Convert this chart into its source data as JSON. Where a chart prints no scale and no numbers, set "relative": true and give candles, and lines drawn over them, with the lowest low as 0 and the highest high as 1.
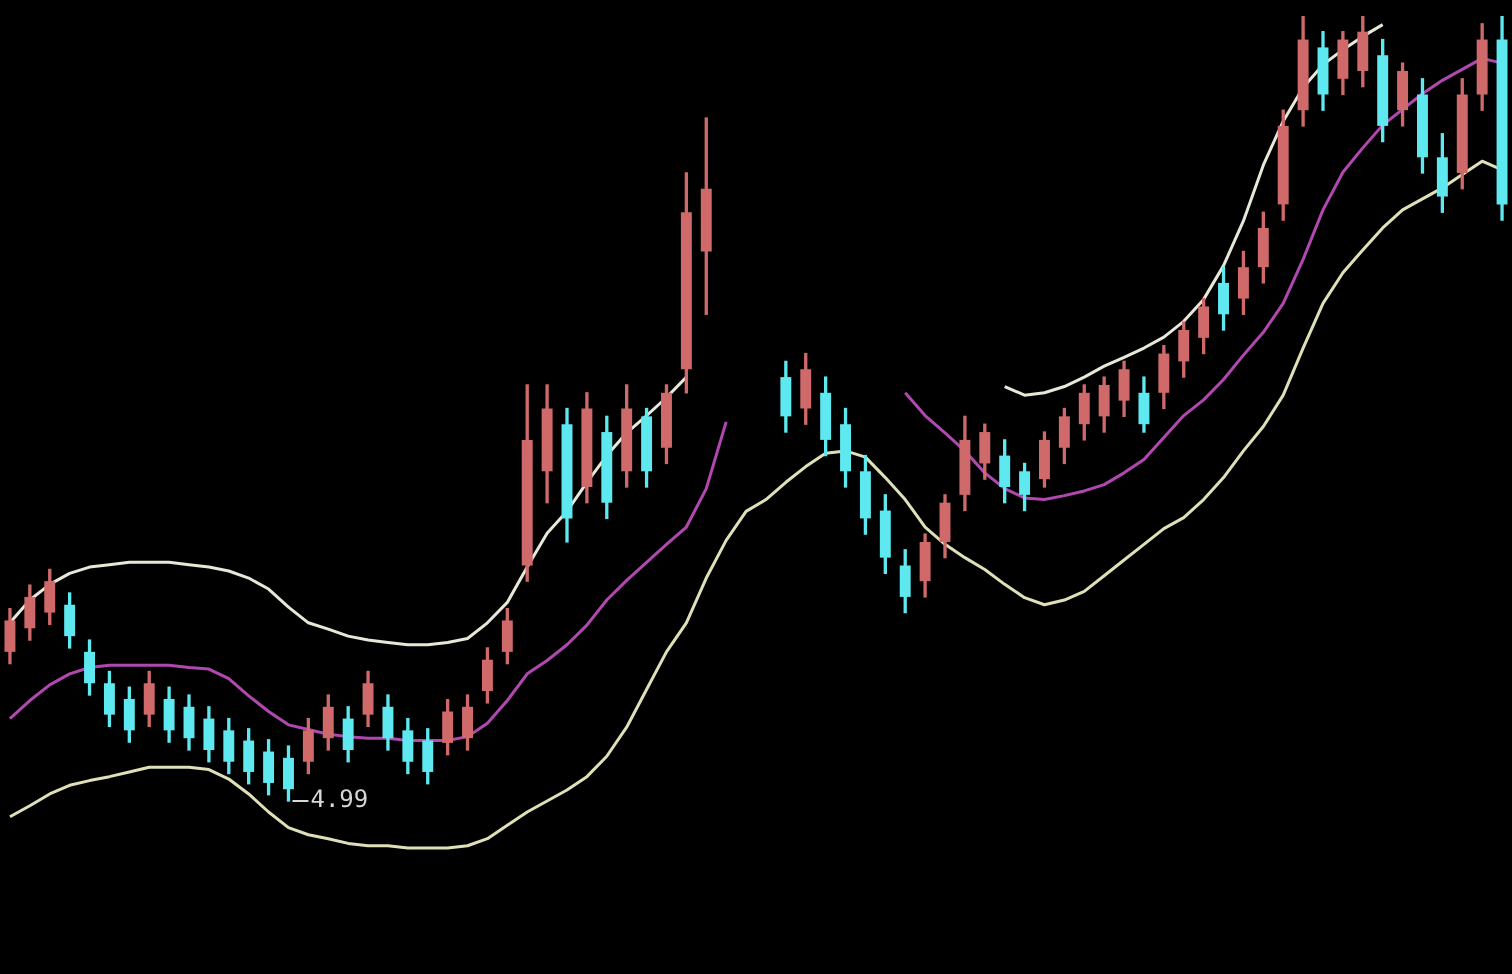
{
  "chart_data": {
    "type": "candlestick",
    "relative": true,
    "categories": [
      null,
      null,
      null,
      null,
      null,
      null,
      null,
      null,
      null,
      null,
      null,
      null,
      null,
      null,
      null,
      null,
      null,
      null,
      null,
      null,
      null,
      null,
      null,
      null,
      null,
      null,
      null,
      null,
      null,
      null,
      null,
      null,
      null,
      null,
      null,
      null,
      null,
      null,
      null,
      null,
      null,
      null,
      null,
      null,
      null,
      null,
      null,
      null,
      null,
      null,
      null,
      null,
      null,
      null,
      null,
      null,
      null,
      null,
      null,
      null,
      null,
      null,
      null,
      null,
      null,
      null,
      null,
      null,
      null,
      null,
      null,
      null,
      null,
      null,
      null,
      null
    ],
    "ohlc": [
      [
        0.19,
        0.245,
        0.175,
        0.23
      ],
      [
        0.22,
        0.275,
        0.205,
        0.26
      ],
      [
        0.24,
        0.295,
        0.225,
        0.28
      ],
      [
        0.25,
        0.265,
        0.195,
        0.21
      ],
      [
        0.19,
        0.205,
        0.135,
        0.15
      ],
      [
        0.15,
        0.165,
        0.095,
        0.11
      ],
      [
        0.13,
        0.145,
        0.075,
        0.09
      ],
      [
        0.11,
        0.165,
        0.095,
        0.15
      ],
      [
        0.13,
        0.145,
        0.075,
        0.09
      ],
      [
        0.12,
        0.135,
        0.065,
        0.08
      ],
      [
        0.105,
        0.12,
        0.05,
        0.065
      ],
      [
        0.09,
        0.105,
        0.035,
        0.05
      ],
      [
        0.077,
        0.092,
        0.022,
        0.037
      ],
      [
        0.063,
        0.078,
        0.008,
        0.023
      ],
      [
        0.055,
        0.07,
        0,
        0.015
      ],
      [
        0.05,
        0.105,
        0.035,
        0.09
      ],
      [
        0.08,
        0.135,
        0.065,
        0.12
      ],
      [
        0.105,
        0.12,
        0.05,
        0.065
      ],
      [
        0.11,
        0.165,
        0.095,
        0.15
      ],
      [
        0.12,
        0.135,
        0.065,
        0.08
      ],
      [
        0.09,
        0.105,
        0.035,
        0.05
      ],
      [
        0.077,
        0.092,
        0.022,
        0.037
      ],
      [
        0.074,
        0.129,
        0.059,
        0.114
      ],
      [
        0.08,
        0.135,
        0.065,
        0.12
      ],
      [
        0.14,
        0.195,
        0.125,
        0.18
      ],
      [
        0.19,
        0.245,
        0.175,
        0.23
      ],
      [
        0.3,
        0.53,
        0.28,
        0.46
      ],
      [
        0.42,
        0.53,
        0.38,
        0.5
      ],
      [
        0.48,
        0.5,
        0.33,
        0.36
      ],
      [
        0.4,
        0.52,
        0.38,
        0.5
      ],
      [
        0.47,
        0.49,
        0.36,
        0.38
      ],
      [
        0.42,
        0.53,
        0.4,
        0.5
      ],
      [
        0.49,
        0.5,
        0.4,
        0.42
      ],
      [
        0.45,
        0.53,
        0.43,
        0.52
      ],
      [
        0.55,
        0.8,
        0.52,
        0.75
      ],
      [
        0.7,
        0.87,
        0.62,
        0.78
      ],
      null,
      null,
      null,
      [
        0.54,
        0.56,
        0.47,
        0.49
      ],
      [
        0.5,
        0.57,
        0.48,
        0.55
      ],
      [
        0.52,
        0.54,
        0.44,
        0.46
      ],
      [
        0.48,
        0.5,
        0.4,
        0.42
      ],
      [
        0.42,
        0.44,
        0.34,
        0.36
      ],
      [
        0.37,
        0.39,
        0.29,
        0.31
      ],
      [
        0.3,
        0.32,
        0.24,
        0.26
      ],
      [
        0.28,
        0.34,
        0.26,
        0.33
      ],
      [
        0.33,
        0.39,
        0.31,
        0.38
      ],
      [
        0.39,
        0.49,
        0.37,
        0.46
      ],
      [
        0.43,
        0.48,
        0.41,
        0.47
      ],
      [
        0.44,
        0.46,
        0.38,
        0.4
      ],
      [
        0.42,
        0.43,
        0.37,
        0.39
      ],
      [
        0.41,
        0.47,
        0.4,
        0.46
      ],
      [
        0.45,
        0.5,
        0.43,
        0.49
      ],
      [
        0.48,
        0.53,
        0.46,
        0.52
      ],
      [
        0.49,
        0.54,
        0.47,
        0.53
      ],
      [
        0.51,
        0.56,
        0.49,
        0.55
      ],
      [
        0.52,
        0.54,
        0.47,
        0.48
      ],
      [
        0.52,
        0.58,
        0.5,
        0.57
      ],
      [
        0.56,
        0.61,
        0.54,
        0.6
      ],
      [
        0.59,
        0.64,
        0.57,
        0.63
      ],
      [
        0.66,
        0.68,
        0.6,
        0.62
      ],
      [
        0.64,
        0.7,
        0.62,
        0.68
      ],
      [
        0.68,
        0.75,
        0.66,
        0.73
      ],
      [
        0.76,
        0.88,
        0.74,
        0.86
      ],
      [
        0.88,
        1,
        0.86,
        0.97
      ],
      [
        0.96,
        0.98,
        0.88,
        0.9
      ],
      [
        0.92,
        0.98,
        0.9,
        0.97
      ],
      [
        0.93,
        1,
        0.91,
        0.98
      ],
      [
        0.95,
        0.97,
        0.84,
        0.86
      ],
      [
        0.88,
        0.94,
        0.86,
        0.93
      ],
      [
        0.9,
        0.92,
        0.8,
        0.82
      ],
      [
        0.82,
        0.85,
        0.75,
        0.77
      ],
      [
        0.8,
        0.92,
        0.78,
        0.9
      ],
      [
        0.9,
        0.99,
        0.88,
        0.97
      ],
      [
        0.97,
        1,
        0.74,
        0.76
      ]
    ],
    "series": [
      {
        "type": "line",
        "color": "#e8e8d8",
        "values": [
          0.227,
          0.256,
          0.276,
          0.29,
          0.298,
          0.301,
          0.304,
          0.304,
          0.304,
          0.301,
          0.298,
          0.293,
          0.284,
          0.27,
          0.247,
          0.227,
          0.219,
          0.21,
          0.205,
          0.202,
          0.199,
          0.199,
          0.202,
          0.207,
          0.227,
          0.253,
          0.298,
          0.341,
          0.369,
          0.406,
          0.44,
          0.469,
          0.491,
          0.514,
          0.54,
          null,
          null,
          null,
          null,
          null,
          null,
          null,
          null,
          null,
          null,
          null,
          null,
          null,
          null,
          null,
          0.528,
          0.517,
          0.52,
          0.528,
          0.54,
          0.554,
          0.565,
          0.577,
          0.591,
          0.611,
          0.639,
          0.682,
          0.739,
          0.81,
          0.866,
          0.909,
          0.938,
          0.957,
          0.974,
          0.989,
          null,
          null,
          null,
          null,
          null,
          null
        ]
      },
      {
        "type": "line",
        "color": "#b048b0",
        "values": [
          0.105,
          0.128,
          0.148,
          0.162,
          0.17,
          0.173,
          0.173,
          0.173,
          0.173,
          0.17,
          0.168,
          0.156,
          0.134,
          0.114,
          0.097,
          0.091,
          0.085,
          0.082,
          0.08,
          0.08,
          0.077,
          0.077,
          0.077,
          0.082,
          0.099,
          0.128,
          0.162,
          0.179,
          0.199,
          0.224,
          0.256,
          0.281,
          0.304,
          0.327,
          0.349,
          0.398,
          0.483,
          null,
          null,
          null,
          null,
          null,
          null,
          null,
          null,
          0.52,
          0.491,
          0.469,
          0.446,
          0.418,
          0.398,
          0.386,
          0.384,
          0.389,
          0.395,
          0.403,
          0.418,
          0.435,
          0.463,
          0.491,
          0.511,
          0.537,
          0.568,
          0.597,
          0.634,
          0.69,
          0.753,
          0.801,
          0.832,
          0.861,
          0.881,
          0.901,
          0.918,
          0.932,
          0.946,
          0.94
        ]
      },
      {
        "type": "line",
        "color": "#e0e0b8",
        "values": [
          -0.02,
          -0.006,
          0.009,
          0.02,
          0.026,
          0.031,
          0.037,
          0.043,
          0.043,
          0.043,
          0.04,
          0.028,
          0.009,
          -0.014,
          -0.034,
          -0.043,
          -0.048,
          -0.054,
          -0.057,
          -0.057,
          -0.06,
          -0.06,
          -0.06,
          -0.057,
          -0.048,
          -0.031,
          -0.014,
          0,
          0.014,
          0.031,
          0.057,
          0.094,
          0.142,
          0.19,
          0.227,
          0.284,
          0.332,
          0.369,
          0.384,
          0.406,
          0.426,
          0.443,
          0.446,
          0.438,
          0.412,
          0.384,
          0.349,
          0.327,
          0.31,
          0.295,
          0.276,
          0.259,
          0.25,
          0.256,
          0.267,
          0.287,
          0.307,
          0.327,
          0.347,
          0.361,
          0.384,
          0.412,
          0.446,
          0.477,
          0.517,
          0.577,
          0.634,
          0.673,
          0.702,
          0.73,
          0.753,
          0.767,
          0.781,
          0.798,
          0.815,
          0.804
        ]
      }
    ],
    "annotations": [
      "4.99"
    ]
  }
}
